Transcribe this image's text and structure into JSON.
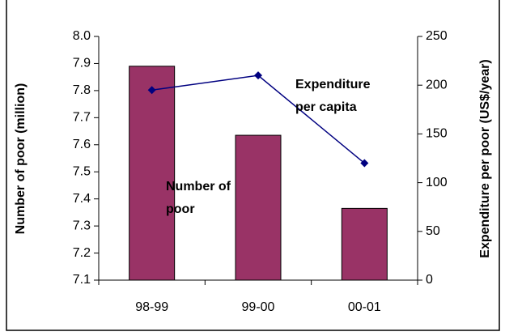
{
  "chart_data": {
    "type": "bar_line",
    "categories": [
      "98-99",
      "99-00",
      "00-01"
    ],
    "series": [
      {
        "name": "Number of poor",
        "type": "bar",
        "color": "#993366",
        "values": [
          7.89,
          7.635,
          7.365
        ]
      },
      {
        "name": "Expenditure per capita",
        "type": "line",
        "axis": "y2",
        "color": "#000080",
        "values": [
          195,
          210,
          120
        ]
      }
    ],
    "annotations": [
      [
        "Expenditure",
        "per capita"
      ],
      [
        "Number of",
        "poor"
      ]
    ],
    "y_label": "Number of poor (million)",
    "y2_label": "Expenditure per poor (US$/year)",
    "ylim": [
      7.1,
      8.0
    ],
    "yticks": [
      7.1,
      7.2,
      7.3,
      7.4,
      7.5,
      7.6,
      7.7,
      7.8,
      7.9,
      {
        "value": 8.0,
        "label": "8.0"
      }
    ],
    "y2lim": [
      0,
      250
    ],
    "y2ticks": [
      0,
      50,
      100,
      150,
      200,
      250
    ]
  }
}
